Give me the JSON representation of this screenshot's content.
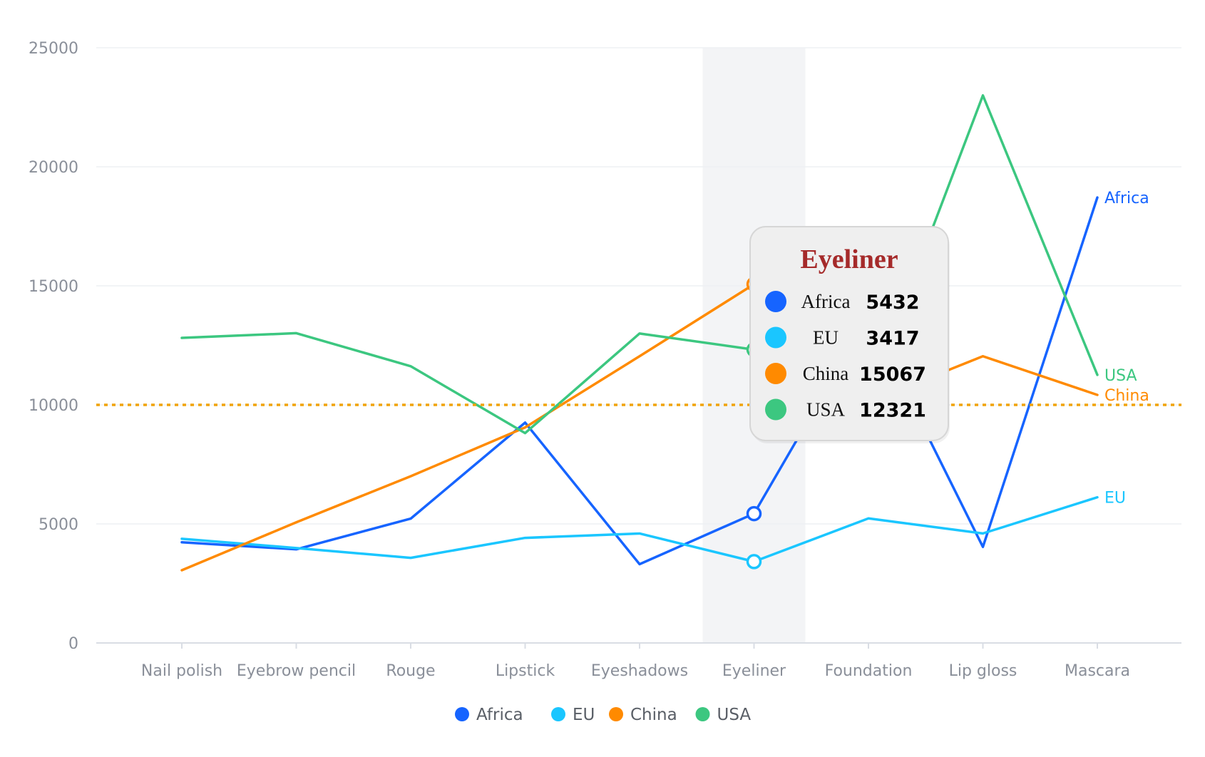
{
  "chart_data": {
    "type": "line",
    "categories": [
      "Nail polish",
      "Eyebrow pencil",
      "Rouge",
      "Lipstick",
      "Eyeshadows",
      "Eyeliner",
      "Foundation",
      "Lip gloss",
      "Mascara"
    ],
    "series": [
      {
        "name": "Africa",
        "color": "#1664ff",
        "values": [
          4229,
          3932,
          5221,
          9256,
          3308,
          5432,
          13701,
          4034,
          18712
        ]
      },
      {
        "name": "EU",
        "color": "#1ac6ff",
        "values": [
          4376,
          3987,
          3574,
          4414,
          4597,
          3417,
          5231,
          4599,
          6119
        ]
      },
      {
        "name": "China",
        "color": "#ff8a00",
        "values": [
          3054,
          5067,
          7004,
          9054,
          12043,
          15067,
          10119,
          12043,
          10419
        ]
      },
      {
        "name": "USA",
        "color": "#3cc780",
        "values": [
          12814,
          13012,
          11624,
          8814,
          12998,
          12321,
          10342,
          22998,
          11261
        ]
      }
    ],
    "xlabel": "",
    "ylabel": "",
    "ylim": [
      0,
      25000
    ],
    "yticks": [
      "0",
      "5000",
      "10000",
      "15000",
      "20000",
      "25000"
    ],
    "grid": true,
    "legend_position": "bottom-center",
    "reference_line": {
      "value": 10000,
      "color": "#f0a30a",
      "style": "dotted"
    },
    "highlight_category": "Eyeliner",
    "tooltip": {
      "title": "Eyeliner",
      "rows": [
        {
          "name": "Africa",
          "value": "5432",
          "color": "#1664ff"
        },
        {
          "name": "EU",
          "value": "3417",
          "color": "#1ac6ff"
        },
        {
          "name": "China",
          "value": "15067",
          "color": "#ff8a00"
        },
        {
          "name": "USA",
          "value": "12321",
          "color": "#3cc780"
        }
      ]
    }
  }
}
